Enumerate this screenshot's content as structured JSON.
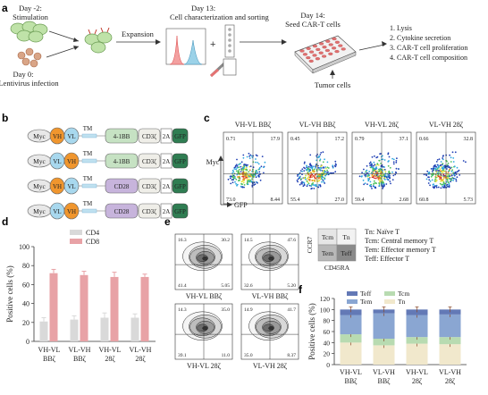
{
  "panel_labels": [
    "a",
    "b",
    "c",
    "d",
    "e",
    "f"
  ],
  "panel_a": {
    "day_minus2": "Day -2:",
    "stimulation": "Stimulation",
    "day0": "Day 0:",
    "lentivirus": "Lentivirus infection",
    "expansion": "Expansion",
    "day13": "Day 13:",
    "characterization": "Cell characterization and sorting",
    "day14": "Day 14:",
    "seed": "Seed CAR-T cells",
    "tumor": "Tumor cells",
    "outcomes": [
      "1. Lysis",
      "2. Cytokine secretion",
      "3. CAR-T cell proliferation",
      "4. CAR-T cell composition"
    ]
  },
  "panel_b": {
    "constructs": [
      {
        "parts": [
          "Myc",
          "VH",
          "VL",
          "TM",
          "4-1BB",
          "CD3ζ",
          "2A",
          "GFP"
        ]
      },
      {
        "parts": [
          "Myc",
          "VL",
          "VH",
          "TM",
          "4-1BB",
          "CD3ζ",
          "2A",
          "GFP"
        ]
      },
      {
        "parts": [
          "Myc",
          "VH",
          "VL",
          "TM",
          "CD28",
          "CD3ζ",
          "2A",
          "GFP"
        ]
      },
      {
        "parts": [
          "Myc",
          "VL",
          "VH",
          "TM",
          "CD28",
          "CD3ζ",
          "2A",
          "GFP"
        ]
      }
    ],
    "colors": {
      "myc": "#e8e8e8",
      "vh": "#f0962e",
      "vl": "#a8d8ee",
      "bb": "#c6e2c3",
      "cd28": "#c7b4dc",
      "cd3": "#efeee8",
      "gfp": "#2f7d52"
    }
  },
  "panel_c": {
    "titles": [
      "VH-VL BBζ",
      "VL-VH BBζ",
      "VH-VL 28ζ",
      "VL-VH 28ζ"
    ],
    "quadrants": [
      {
        "tl": "0.71",
        "tr": "17.9",
        "bl": "73.0",
        "br": "8.44"
      },
      {
        "tl": "0.45",
        "tr": "17.2",
        "bl": "55.4",
        "br": "27.0"
      },
      {
        "tl": "0.79",
        "tr": "37.1",
        "bl": "59.4",
        "br": "2.68"
      },
      {
        "tl": "0.66",
        "tr": "32.8",
        "bl": "60.8",
        "br": "5.73"
      }
    ],
    "ylabel": "Myc",
    "xlabel": "GFP"
  },
  "panel_d": {
    "chart_data": {
      "type": "bar",
      "categories": [
        "VH-VL BBζ",
        "VL-VH BBζ",
        "VH-VL 28ζ",
        "VL-VH 28ζ"
      ],
      "series": [
        {
          "name": "CD4",
          "values": [
            21,
            23,
            25,
            25
          ],
          "errors": [
            4,
            4,
            5,
            4
          ],
          "color": "#d9d9d9"
        },
        {
          "name": "CD8",
          "values": [
            72,
            70,
            68,
            68
          ],
          "errors": [
            4,
            4,
            5,
            3
          ],
          "color": "#e8a2a6"
        }
      ],
      "ylabel": "Positive cells (%)",
      "ylim": [
        0,
        100
      ],
      "yticks": [
        "0",
        "20",
        "40",
        "60",
        "80",
        "100"
      ],
      "tick_lines": [
        [
          "VH-VL",
          "BBζ"
        ],
        [
          "VL-VH",
          "BBζ"
        ],
        [
          "VH-VL",
          "28ζ"
        ],
        [
          "VL-VH",
          "28ζ"
        ]
      ]
    }
  },
  "panel_e": {
    "plots": [
      {
        "title": "VH-VL BBζ",
        "tl": "16.3",
        "tr": "30.2",
        "bl": "41.4",
        "br": "5.05"
      },
      {
        "title": "VL-VH BBζ",
        "tl": "14.5",
        "tr": "47.6",
        "bl": "32.6",
        "br": "5.20"
      },
      {
        "title": "VH-VL 28ζ",
        "tl": "14.3",
        "tr": "35.0",
        "bl": "39.1",
        "br": "11.0"
      },
      {
        "title": "VL-VH 28ζ",
        "tl": "14.9",
        "tr": "41.7",
        "bl": "35.0",
        "br": "8.37"
      }
    ],
    "legend_grid": {
      "tl": "Tcm",
      "tr": "Tn",
      "bl": "Tem",
      "br": "Teff",
      "ylabel": "CCR7",
      "xlabel": "CD45RA"
    },
    "legend_text": [
      "Tn: Naïve T",
      "Tcm: Central memory T",
      "Tem: Effector memory T",
      "Teff: Effector T"
    ]
  },
  "panel_f": {
    "chart_data": {
      "type": "bar",
      "stacked": true,
      "categories": [
        "VH-VL BBζ",
        "VL-VH BBζ",
        "VH-VL 28ζ",
        "VL-VH 28ζ"
      ],
      "series": [
        {
          "name": "Tn",
          "values": [
            40,
            35,
            38,
            37
          ],
          "color": "#f1e8cc"
        },
        {
          "name": "Tcm",
          "values": [
            15,
            12,
            12,
            13
          ],
          "color": "#b8dbb1"
        },
        {
          "name": "Tem",
          "values": [
            35,
            46,
            40,
            41
          ],
          "color": "#8aa6d2"
        },
        {
          "name": "Teff",
          "values": [
            10,
            7,
            10,
            9
          ],
          "color": "#6379b6"
        }
      ],
      "ylabel": "Positive cells (%)",
      "ylim": [
        0,
        120
      ],
      "yticks": [
        "0",
        "20",
        "40",
        "60",
        "80",
        "100",
        "120"
      ],
      "tick_lines": [
        [
          "VH-VL",
          "BBζ"
        ],
        [
          "VL-VH",
          "BBζ"
        ],
        [
          "VH-VL",
          "28ζ"
        ],
        [
          "VL-VH",
          "28ζ"
        ]
      ]
    }
  }
}
